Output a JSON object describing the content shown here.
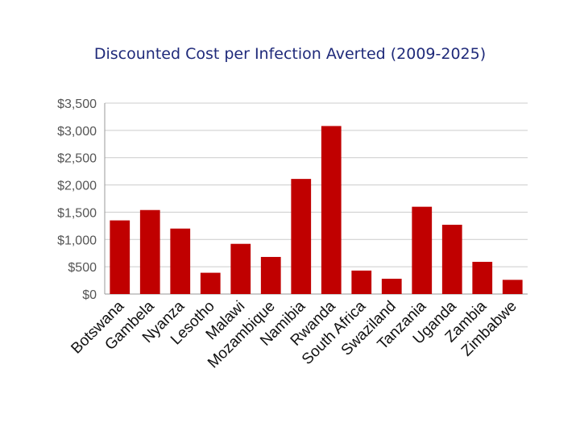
{
  "chart_data": {
    "type": "bar",
    "title": "Discounted Cost per Infection Averted (2009-2025)",
    "xlabel": "",
    "ylabel": "",
    "ylim": [
      0,
      3500
    ],
    "yticks": [
      0,
      500,
      1000,
      1500,
      2000,
      2500,
      3000,
      3500
    ],
    "ytick_labels": [
      "$0",
      "$500",
      "$1,000",
      "$1,500",
      "$2,000",
      "$2,500",
      "$3,000",
      "$3,500"
    ],
    "grid": true,
    "bar_color": "#c00000",
    "categories": [
      "Botswana",
      "Gambela",
      "Nyanza",
      "Lesotho",
      "Malawi",
      "Mozambique",
      "Namibia",
      "Rwanda",
      "South Africa",
      "Swaziland",
      "Tanzania",
      "Uganda",
      "Zambia",
      "Zimbabwe"
    ],
    "values": [
      1350,
      1540,
      1200,
      390,
      920,
      680,
      2110,
      3080,
      430,
      280,
      1600,
      1270,
      590,
      260
    ]
  }
}
